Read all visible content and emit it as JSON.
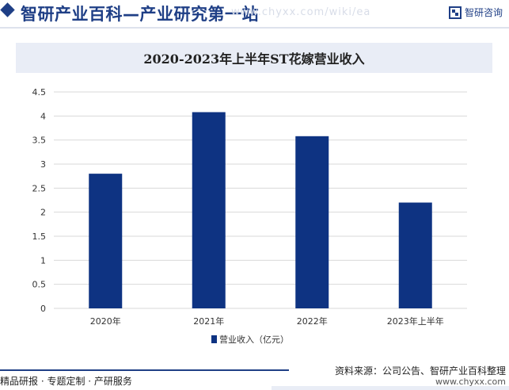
{
  "header": {
    "site_title": "智研产业百科—产业研究第一站",
    "watermark": "www.chyxx.com/wiki/ea",
    "brand_name": "智研咨询"
  },
  "chart_data": {
    "type": "bar",
    "title": "2020-2023年上半年ST花嫁营业收入",
    "categories": [
      "2020年",
      "2021年",
      "2022年",
      "2023年上半年"
    ],
    "series": [
      {
        "name": "营业收入（亿元）",
        "values": [
          2.8,
          4.08,
          3.58,
          2.2
        ],
        "color": "#0e3382"
      }
    ],
    "ylim": [
      0,
      4.5
    ],
    "yticks": [
      "0",
      "0.5",
      "1",
      "1.5",
      "2",
      "2.5",
      "3",
      "3.5",
      "4",
      "4.5"
    ],
    "grid": true,
    "legend_position": "bottom-center"
  },
  "footer": {
    "left": "精品研报 · 专题定制 · 产研服务",
    "source": "资料来源：公司公告、智研产业百科整理",
    "url": "www.chyxx.com"
  }
}
